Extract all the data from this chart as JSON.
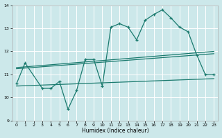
{
  "xlabel": "Humidex (Indice chaleur)",
  "bg_color": "#cce8ea",
  "line_color": "#1a7a6e",
  "grid_color": "#ffffff",
  "xlim": [
    -0.5,
    23.5
  ],
  "ylim": [
    9,
    14
  ],
  "yticks": [
    9,
    10,
    11,
    12,
    13,
    14
  ],
  "xticks": [
    0,
    1,
    2,
    3,
    4,
    5,
    6,
    7,
    8,
    9,
    10,
    11,
    12,
    13,
    14,
    15,
    16,
    17,
    18,
    19,
    20,
    21,
    22,
    23
  ],
  "curve1_x": [
    0,
    1,
    3,
    4,
    5,
    6,
    7,
    8,
    9,
    10,
    11,
    12,
    13,
    14,
    15,
    16,
    17,
    18,
    19,
    20,
    21,
    22,
    23
  ],
  "curve1_y": [
    10.6,
    11.5,
    10.4,
    10.4,
    10.7,
    9.5,
    10.3,
    11.65,
    11.65,
    10.5,
    13.05,
    13.2,
    13.05,
    12.5,
    13.35,
    13.6,
    13.8,
    13.45,
    13.05,
    12.85,
    11.85,
    11.0,
    11.0
  ],
  "line1_x": [
    0,
    23
  ],
  "line1_y": [
    11.3,
    12.0
  ],
  "line2_x": [
    0,
    23
  ],
  "line2_y": [
    11.25,
    11.9
  ],
  "line3_x": [
    0,
    23
  ],
  "line3_y": [
    10.5,
    10.82
  ]
}
